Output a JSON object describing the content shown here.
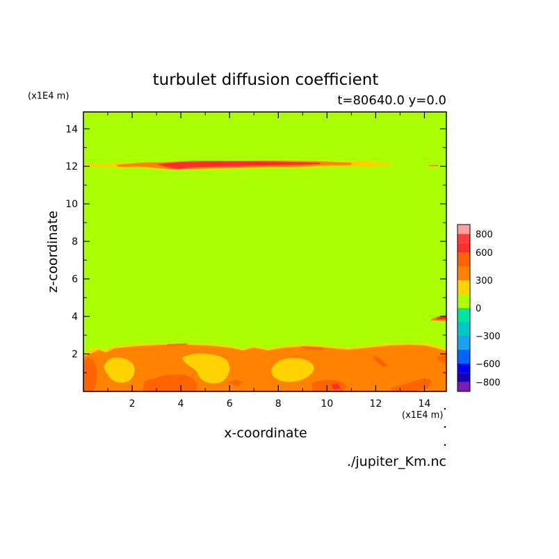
{
  "chart_data": {
    "type": "heatmap",
    "title": "turbulet diffusion coefficient",
    "subtitle": "t=80640.0 y=0.0",
    "xlabel": "x-coordinate",
    "ylabel": "z-coordinate",
    "x_scale_note": "(x1E4 m)",
    "y_scale_note": "(x1E4 m)",
    "xlim": [
      0,
      14.9
    ],
    "ylim": [
      0,
      14.9
    ],
    "x_ticks": [
      "2",
      "4",
      "6",
      "8",
      "10",
      "12",
      "14"
    ],
    "y_ticks": [
      "2",
      "4",
      "6",
      "8",
      "10",
      "12",
      "14"
    ],
    "source_file": "./jupiter_Km.nc",
    "colorbar": {
      "labels": [
        "800",
        "600",
        "300",
        "0",
        "−300",
        "−600",
        "−800"
      ],
      "label_values": [
        800,
        600,
        300,
        0,
        -300,
        -600,
        -800
      ],
      "levels": [
        {
          "from": -900,
          "to": -800,
          "color": "#7a1cb4"
        },
        {
          "from": -800,
          "to": -700,
          "color": "#1a00b4"
        },
        {
          "from": -700,
          "to": -600,
          "color": "#0000ff"
        },
        {
          "from": -600,
          "to": -450,
          "color": "#0064ff"
        },
        {
          "from": -450,
          "to": -300,
          "color": "#1aa0f0"
        },
        {
          "from": -300,
          "to": -150,
          "color": "#00c8c8"
        },
        {
          "from": -150,
          "to": 0,
          "color": "#00e6a0"
        },
        {
          "from": 0,
          "to": 150,
          "color": "#aaff00"
        },
        {
          "from": 150,
          "to": 300,
          "color": "#ffd200"
        },
        {
          "from": 300,
          "to": 450,
          "color": "#ff8200"
        },
        {
          "from": 450,
          "to": 600,
          "color": "#ff6400"
        },
        {
          "from": 600,
          "to": 700,
          "color": "#ff2d2d"
        },
        {
          "from": 700,
          "to": 800,
          "color": "#ff3c3c"
        },
        {
          "from": 800,
          "to": 900,
          "color": "#ffa0a0"
        }
      ]
    },
    "field": {
      "background_value": 100,
      "features": [
        {
          "name": "upper thin layer",
          "z_center": 12.0,
          "x_range": [
            0,
            12.6
          ],
          "values": [
            200,
            450,
            650
          ]
        },
        {
          "name": "small patch near right edge",
          "x_range": [
            14.3,
            14.9
          ],
          "z_range": [
            3.8,
            4.0
          ],
          "values": [
            450,
            650
          ]
        },
        {
          "name": "lower mixed layer",
          "x_range": [
            0,
            14.9
          ],
          "z_range": [
            0,
            2.6
          ],
          "values": [
            200,
            400,
            650
          ]
        }
      ]
    }
  }
}
